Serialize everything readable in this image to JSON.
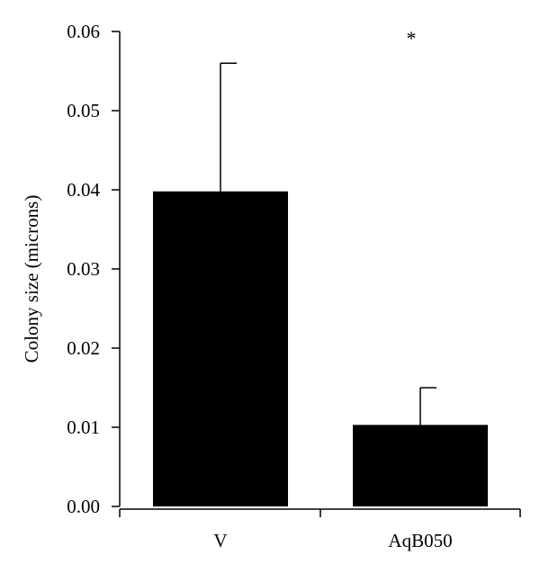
{
  "chart_data": {
    "type": "bar",
    "title": "",
    "xlabel": "",
    "ylabel": "Colony size (microns)",
    "categories": [
      "V",
      "AqB050"
    ],
    "values": [
      0.0398,
      0.0103
    ],
    "error_upper": [
      0.056,
      0.015
    ],
    "ylim": [
      0,
      0.06
    ],
    "yticks": [
      0,
      0.01,
      0.02,
      0.03,
      0.04,
      0.05,
      0.06
    ],
    "ytick_labels": [
      "0.00",
      "0.01",
      "0.02",
      "0.03",
      "0.04",
      "0.05",
      "0.06"
    ],
    "annotations": [
      {
        "category": "AqB050",
        "text": "*"
      }
    ],
    "grid": false,
    "bar_color": "#000000"
  }
}
